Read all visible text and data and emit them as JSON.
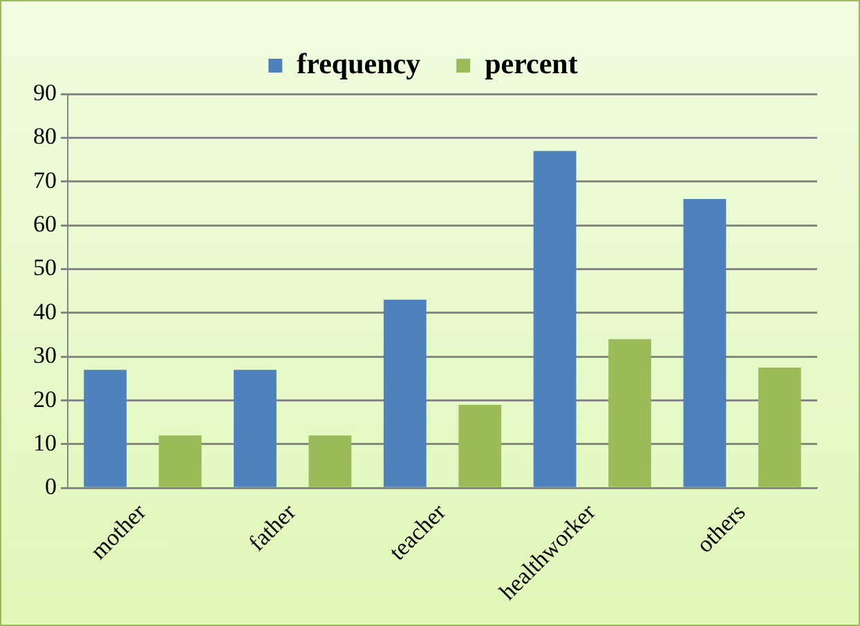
{
  "chart_data": {
    "type": "bar",
    "categories": [
      "mother",
      "father",
      "teacher",
      "healthworker",
      "others"
    ],
    "series": [
      {
        "name": "frequency",
        "color": "#4f81bd",
        "values": [
          27,
          27,
          43,
          77,
          66
        ]
      },
      {
        "name": "percent",
        "color": "#9bbb59",
        "values": [
          12,
          12,
          19,
          34,
          27.5
        ]
      }
    ],
    "ylim": [
      0,
      90
    ],
    "yticks": [
      0,
      10,
      20,
      30,
      40,
      50,
      60,
      70,
      80,
      90
    ],
    "grid": "y",
    "legend": "top"
  }
}
